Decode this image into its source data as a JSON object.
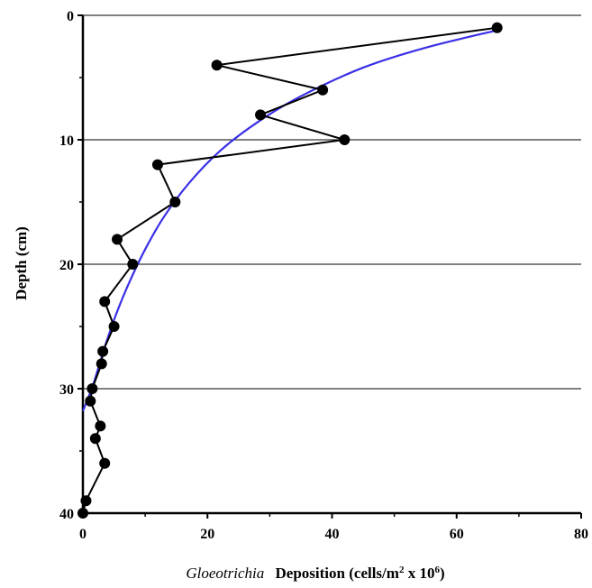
{
  "chart_data": {
    "type": "line",
    "title": "",
    "xlabel_italic": "Gloeotrichia",
    "xlabel_rest": "Deposition (cells/m",
    "xlabel_sup1": "2",
    "xlabel_mid": " x 10",
    "xlabel_sup2": "6",
    "xlabel_end": ")",
    "ylabel": "Depth (cm)",
    "xlim": [
      0,
      80
    ],
    "ylim": [
      40,
      0
    ],
    "x_ticks": [
      "0",
      "20",
      "40",
      "60",
      "80"
    ],
    "y_ticks": [
      "0",
      "10",
      "20",
      "30",
      "40"
    ],
    "grid": "horizontal",
    "series": [
      {
        "type": "line-markers",
        "color": "#000000",
        "points": [
          {
            "x": 66.5,
            "y": 1
          },
          {
            "x": 21.5,
            "y": 4
          },
          {
            "x": 38.5,
            "y": 6
          },
          {
            "x": 28.5,
            "y": 8
          },
          {
            "x": 42,
            "y": 10
          },
          {
            "x": 12,
            "y": 12
          },
          {
            "x": 14.8,
            "y": 15
          },
          {
            "x": 5.5,
            "y": 18
          },
          {
            "x": 8,
            "y": 20
          },
          {
            "x": 3.5,
            "y": 23
          },
          {
            "x": 5,
            "y": 25
          },
          {
            "x": 3.2,
            "y": 27
          },
          {
            "x": 3,
            "y": 28
          },
          {
            "x": 1.5,
            "y": 30
          },
          {
            "x": 1.2,
            "y": 31
          },
          {
            "x": 2.8,
            "y": 33
          },
          {
            "x": 2,
            "y": 34
          },
          {
            "x": 3.5,
            "y": 36
          },
          {
            "x": 0.5,
            "y": 39
          },
          {
            "x": 0,
            "y": 40
          }
        ]
      },
      {
        "type": "fit-curve",
        "color": "#3a2fe6",
        "points": [
          {
            "x": 66.5,
            "y": 1.2
          },
          {
            "x": 55,
            "y": 2.6
          },
          {
            "x": 45,
            "y": 4.2
          },
          {
            "x": 35,
            "y": 6.5
          },
          {
            "x": 28,
            "y": 8.6
          },
          {
            "x": 22,
            "y": 10.9
          },
          {
            "x": 17,
            "y": 13.5
          },
          {
            "x": 13,
            "y": 16.2
          },
          {
            "x": 10,
            "y": 18.8
          },
          {
            "x": 7.5,
            "y": 21.4
          },
          {
            "x": 5.5,
            "y": 23.8
          },
          {
            "x": 4,
            "y": 25.9
          },
          {
            "x": 2.8,
            "y": 27.8
          },
          {
            "x": 1.7,
            "y": 29.6
          },
          {
            "x": 0.8,
            "y": 30.8
          },
          {
            "x": 0,
            "y": 31.8
          }
        ]
      }
    ]
  }
}
